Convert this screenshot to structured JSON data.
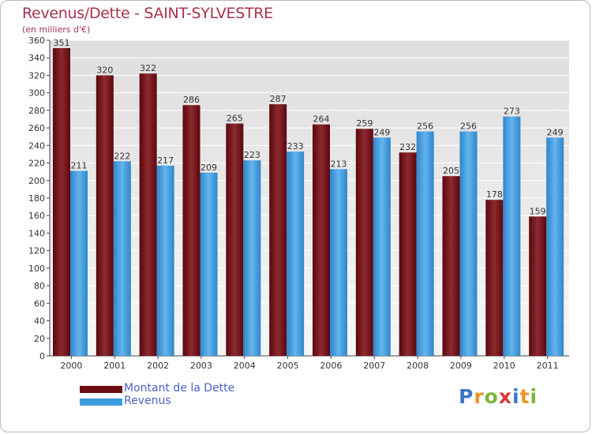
{
  "title": "Revenus/Dette - SAINT-SYLVESTRE",
  "subtitle": "(en milliers d'€)",
  "legend": {
    "debt_label": "Montant de la Dette",
    "revenue_label": "Revenus"
  },
  "logo": {
    "text": "Proxiti"
  },
  "colors": {
    "debt": "#6b0d14",
    "revenue": "#3d9ce0",
    "title": "#a8324e",
    "legend_text": "#4a63c8",
    "grid": "#ffffff",
    "plot_bg_top": "#e0e0e0",
    "plot_bg_bottom": "#f4f4f4"
  },
  "chart_data": {
    "type": "bar",
    "title": "Revenus/Dette - SAINT-SYLVESTRE",
    "subtitle": "(en milliers d'€)",
    "xlabel": "",
    "ylabel": "",
    "categories": [
      "2000",
      "2001",
      "2002",
      "2003",
      "2004",
      "2005",
      "2006",
      "2007",
      "2008",
      "2009",
      "2010",
      "2011"
    ],
    "series": [
      {
        "name": "Montant de la Dette",
        "values": [
          351,
          320,
          322,
          286,
          265,
          287,
          264,
          259,
          232,
          205,
          178,
          159
        ]
      },
      {
        "name": "Revenus",
        "values": [
          211,
          222,
          217,
          209,
          223,
          233,
          213,
          249,
          256,
          256,
          273,
          249
        ]
      }
    ],
    "ylim": [
      0,
      360
    ],
    "ytick_step": 20,
    "grid": true,
    "legend_position": "bottom-left"
  }
}
